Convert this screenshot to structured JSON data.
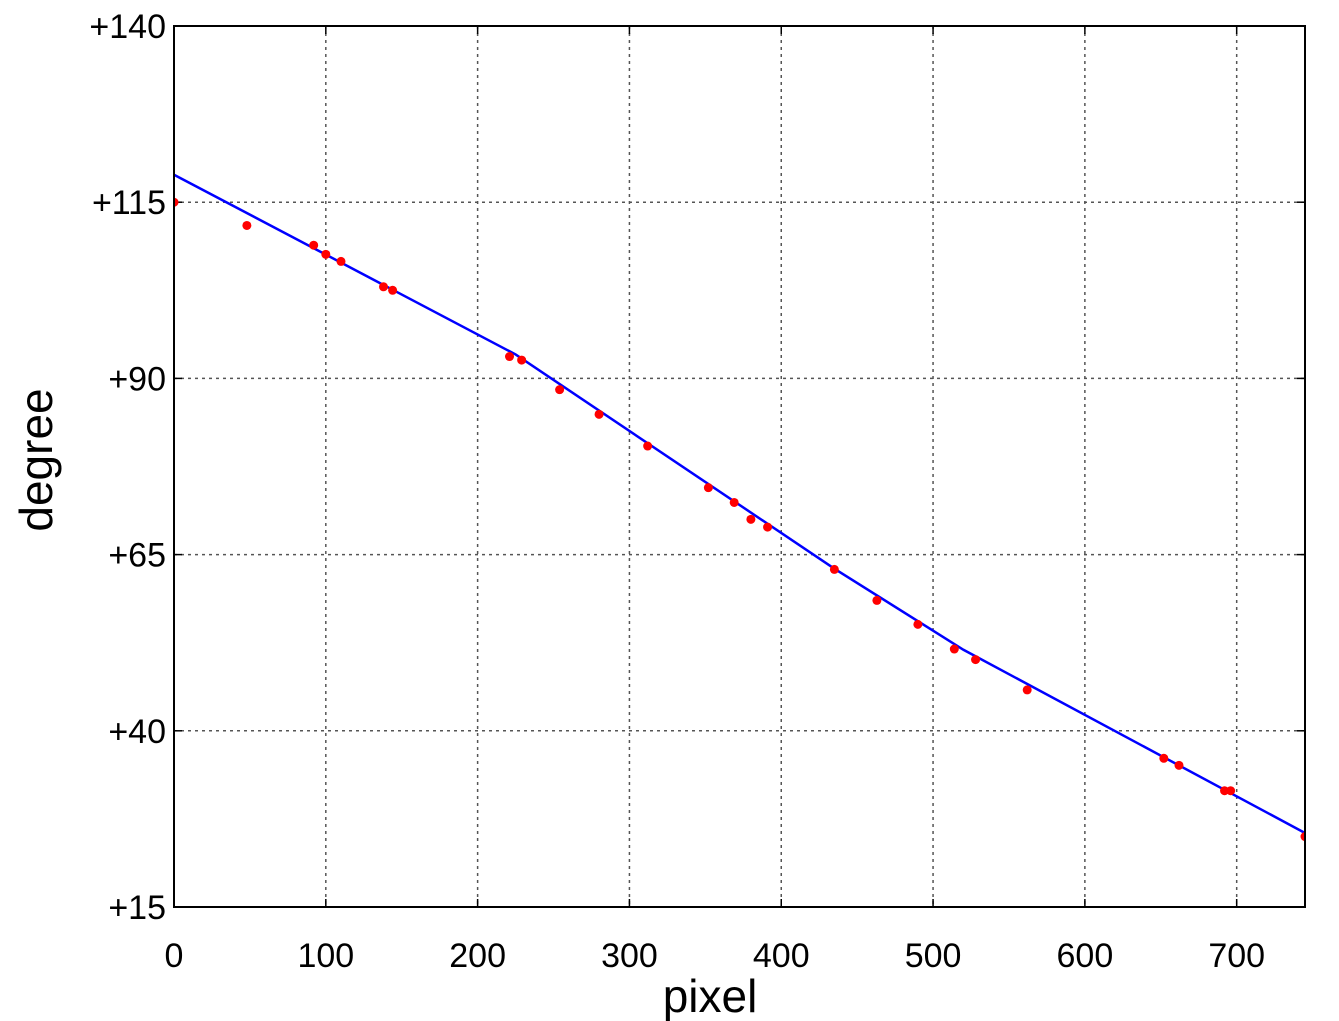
{
  "chart_data": {
    "type": "scatter",
    "title": "",
    "xlabel": "pixel",
    "ylabel": "degree",
    "xlim": [
      0,
      745
    ],
    "ylim": [
      15,
      140
    ],
    "grid": true,
    "x_ticks": [
      0,
      100,
      200,
      300,
      400,
      500,
      600,
      700
    ],
    "x_tick_labels": [
      "0",
      "100",
      "200",
      "300",
      "400",
      "500",
      "600",
      "700"
    ],
    "y_ticks": [
      15,
      40,
      65,
      90,
      115,
      140
    ],
    "y_tick_labels": [
      "+15",
      "+40",
      "+65",
      "+90",
      "+115",
      "+140"
    ],
    "colors": {
      "points": "#ff0000",
      "line": "#0000ff",
      "grid": "#555555",
      "axes": "#000000"
    },
    "series": [
      {
        "type": "scatter",
        "points": [
          [
            0,
            115.0
          ],
          [
            48,
            111.7
          ],
          [
            92,
            108.9
          ],
          [
            100,
            107.6
          ],
          [
            110,
            106.6
          ],
          [
            138,
            103.0
          ],
          [
            144,
            102.5
          ],
          [
            221,
            93.1
          ],
          [
            229,
            92.6
          ],
          [
            254,
            88.4
          ],
          [
            280,
            84.9
          ],
          [
            312,
            80.4
          ],
          [
            352,
            74.5
          ],
          [
            369,
            72.4
          ],
          [
            380,
            70.0
          ],
          [
            391,
            68.9
          ],
          [
            435,
            62.9
          ],
          [
            463,
            58.5
          ],
          [
            490,
            55.1
          ],
          [
            514,
            51.6
          ],
          [
            528,
            50.1
          ],
          [
            562,
            45.8
          ],
          [
            652,
            36.1
          ],
          [
            662,
            35.1
          ],
          [
            692,
            31.5
          ],
          [
            696,
            31.5
          ],
          [
            745,
            25.0
          ]
        ]
      },
      {
        "type": "line",
        "points": [
          [
            0,
            118.9
          ],
          [
            225,
            93.4
          ],
          [
            435,
            63.0
          ],
          [
            520,
            51.5
          ],
          [
            745,
            25.5
          ]
        ]
      }
    ]
  }
}
